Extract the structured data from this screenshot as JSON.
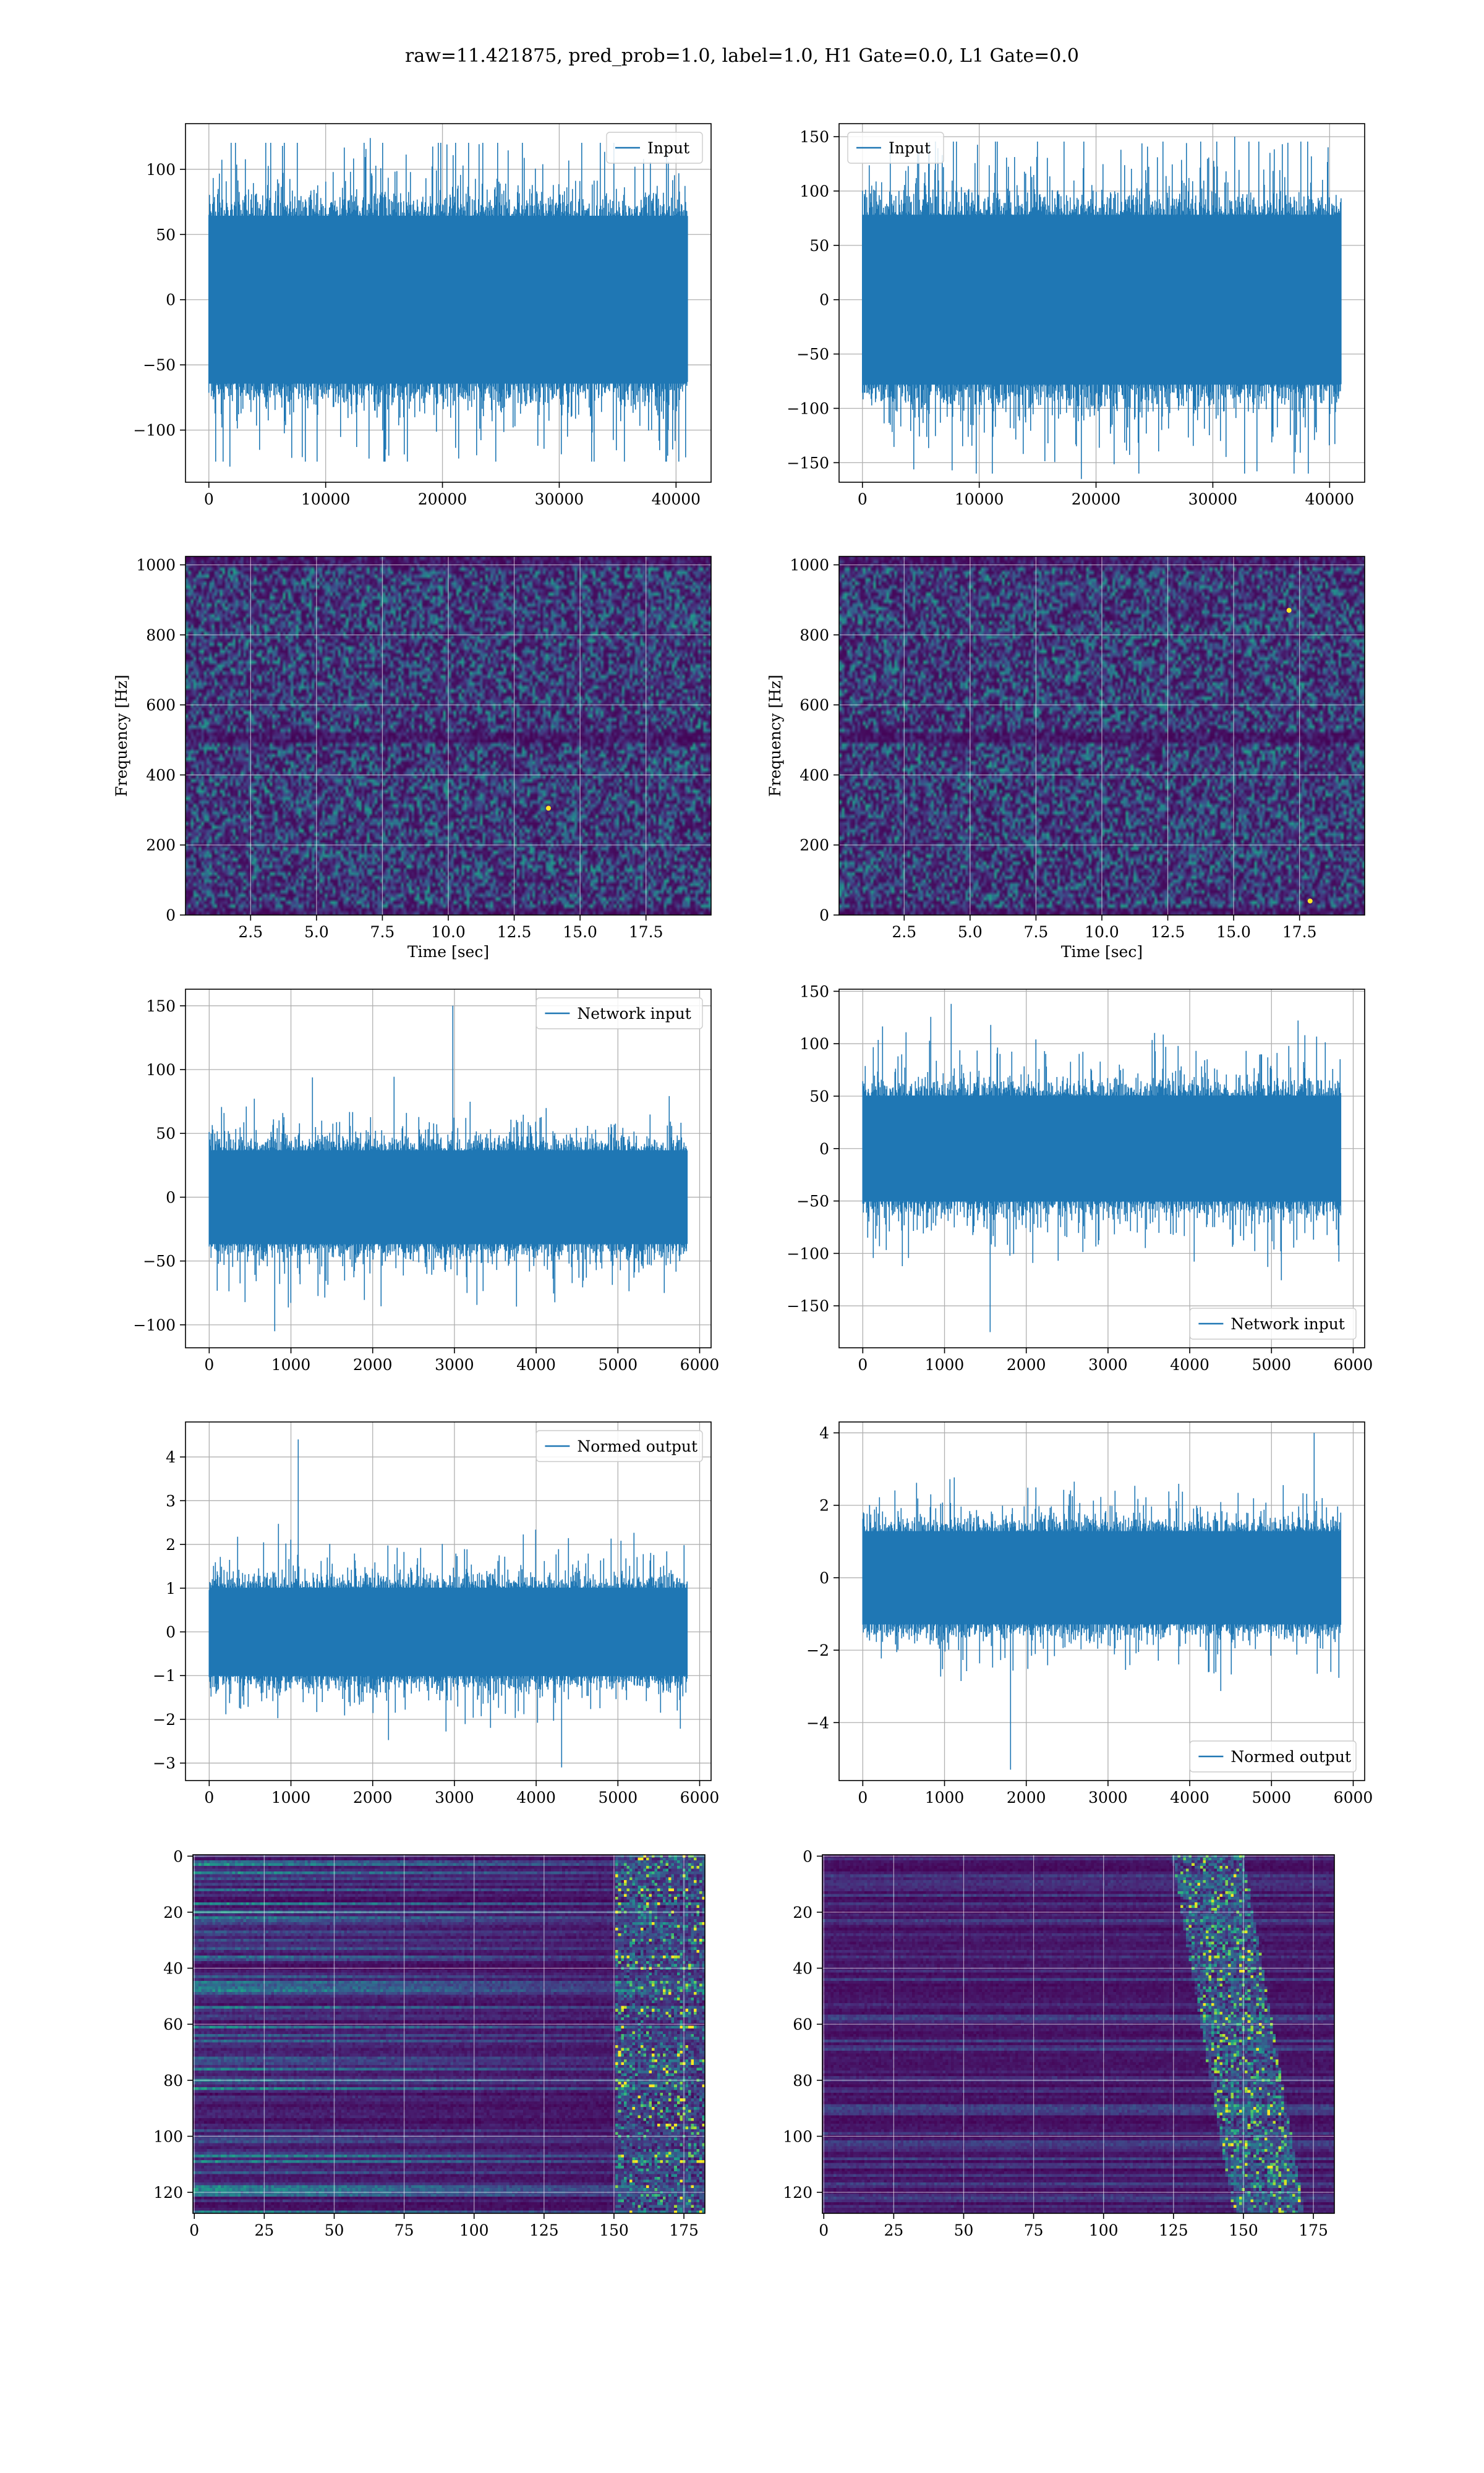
{
  "figure": {
    "title": "raw=11.421875, pred_prob=1.0, label=1.0, H1 Gate=0.0, L1 Gate=0.0"
  },
  "colors": {
    "line": "#1f77b4",
    "viridis_dark": "#440154",
    "viridis_mid": "#21918c",
    "viridis_bright": "#fde725"
  },
  "chart_data": [
    {
      "id": "input-h1",
      "type": "line",
      "title": "",
      "xlabel": "",
      "ylabel": "",
      "xlim": [
        -2000,
        43000
      ],
      "ylim": [
        -140,
        135
      ],
      "xticks": [
        0,
        10000,
        20000,
        30000,
        40000
      ],
      "yticks": [
        -100,
        -50,
        0,
        50,
        100
      ],
      "series": [
        {
          "name": "Input",
          "n_samples": 40960,
          "x_range": [
            0,
            40959
          ],
          "typical_range": [
            -70,
            70
          ],
          "extremes": [
            -128,
            124
          ]
        }
      ],
      "legend": "top-right",
      "grid": true
    },
    {
      "id": "input-l1",
      "type": "line",
      "title": "",
      "xlabel": "",
      "ylabel": "",
      "xlim": [
        -2000,
        43000
      ],
      "ylim": [
        -168,
        162
      ],
      "xticks": [
        0,
        10000,
        20000,
        30000,
        40000
      ],
      "yticks": [
        -150,
        -100,
        -50,
        0,
        50,
        100,
        150
      ],
      "series": [
        {
          "name": "Input",
          "n_samples": 40960,
          "x_range": [
            0,
            40959
          ],
          "typical_range": [
            -85,
            85
          ],
          "extremes": [
            -165,
            150
          ]
        }
      ],
      "legend": "top-left",
      "grid": true
    },
    {
      "id": "spectrogram-h1",
      "type": "heatmap",
      "title": "",
      "xlabel": "Time [sec]",
      "ylabel": "Frequency [Hz]",
      "xlim": [
        0.03,
        19.97
      ],
      "ylim": [
        0,
        1024
      ],
      "xticks": [
        2.5,
        5.0,
        7.5,
        10.0,
        12.5,
        15.0,
        17.5
      ],
      "yticks": [
        0,
        200,
        400,
        600,
        800,
        1000
      ],
      "colormap": "viridis",
      "grid": true,
      "bright_spots": [
        {
          "x": 13.8,
          "y": 305
        }
      ]
    },
    {
      "id": "spectrogram-l1",
      "type": "heatmap",
      "title": "",
      "xlabel": "Time [sec]",
      "ylabel": "Frequency [Hz]",
      "xlim": [
        0.03,
        19.97
      ],
      "ylim": [
        0,
        1024
      ],
      "xticks": [
        2.5,
        5.0,
        7.5,
        10.0,
        12.5,
        15.0,
        17.5
      ],
      "yticks": [
        0,
        200,
        400,
        600,
        800,
        1000
      ],
      "colormap": "viridis",
      "grid": true,
      "bright_spots": [
        {
          "x": 17.9,
          "y": 40
        },
        {
          "x": 17.1,
          "y": 870
        }
      ]
    },
    {
      "id": "network-input-h1",
      "type": "line",
      "title": "",
      "xlabel": "",
      "ylabel": "",
      "xlim": [
        -290,
        6140
      ],
      "ylim": [
        -118,
        163
      ],
      "xticks": [
        0,
        1000,
        2000,
        3000,
        4000,
        5000,
        6000
      ],
      "yticks": [
        -100,
        -50,
        0,
        50,
        100,
        150
      ],
      "series": [
        {
          "name": "Network input",
          "n_samples": 5850,
          "x_range": [
            0,
            5849
          ],
          "typical_range": [
            -40,
            40
          ],
          "extremes": [
            -105,
            150
          ]
        }
      ],
      "legend": "top-right",
      "grid": true
    },
    {
      "id": "network-input-l1",
      "type": "line",
      "title": "",
      "xlabel": "",
      "ylabel": "",
      "xlim": [
        -290,
        6140
      ],
      "ylim": [
        -190,
        152
      ],
      "xticks": [
        0,
        1000,
        2000,
        3000,
        4000,
        5000,
        6000
      ],
      "yticks": [
        -150,
        -100,
        -50,
        0,
        50,
        100,
        150
      ],
      "series": [
        {
          "name": "Network input",
          "n_samples": 5850,
          "x_range": [
            0,
            5849
          ],
          "typical_range": [
            -55,
            55
          ],
          "extremes": [
            -175,
            138
          ]
        }
      ],
      "legend": "bottom-right",
      "grid": true
    },
    {
      "id": "normed-output-h1",
      "type": "line",
      "title": "",
      "xlabel": "",
      "ylabel": "",
      "xlim": [
        -290,
        6140
      ],
      "ylim": [
        -3.4,
        4.8
      ],
      "xticks": [
        0,
        1000,
        2000,
        3000,
        4000,
        5000,
        6000
      ],
      "yticks": [
        -3,
        -2,
        -1,
        0,
        1,
        2,
        3,
        4
      ],
      "series": [
        {
          "name": "Normed output",
          "n_samples": 5850,
          "x_range": [
            0,
            5849
          ],
          "typical_range": [
            -1.1,
            1.1
          ],
          "extremes": [
            -3.1,
            4.4
          ]
        }
      ],
      "legend": "top-right",
      "grid": true
    },
    {
      "id": "normed-output-l1",
      "type": "line",
      "title": "",
      "xlabel": "",
      "ylabel": "",
      "xlim": [
        -290,
        6140
      ],
      "ylim": [
        -5.6,
        4.3
      ],
      "xticks": [
        0,
        1000,
        2000,
        3000,
        4000,
        5000,
        6000
      ],
      "yticks": [
        -4,
        -2,
        0,
        2,
        4
      ],
      "series": [
        {
          "name": "Normed output",
          "n_samples": 5850,
          "x_range": [
            0,
            5849
          ],
          "typical_range": [
            -1.4,
            1.4
          ],
          "extremes": [
            -5.3,
            4.0
          ]
        }
      ],
      "legend": "bottom-right",
      "grid": true
    },
    {
      "id": "feature-map-h1",
      "type": "heatmap",
      "title": "",
      "xlabel": "",
      "ylabel": "",
      "xlim": [
        -0.5,
        182.5
      ],
      "ylim": [
        127.5,
        -0.5
      ],
      "y_inverted": true,
      "xticks": [
        0,
        25,
        50,
        75,
        100,
        125,
        150,
        175
      ],
      "yticks": [
        0,
        20,
        40,
        60,
        80,
        100,
        120
      ],
      "rows": 128,
      "cols": 183,
      "colormap": "viridis",
      "grid": true,
      "activity": "horizontal banded rows, fading left to right; bright cluster near columns 150-183"
    },
    {
      "id": "feature-map-l1",
      "type": "heatmap",
      "title": "",
      "xlabel": "",
      "ylabel": "",
      "xlim": [
        -0.5,
        182.5
      ],
      "ylim": [
        127.5,
        -0.5
      ],
      "y_inverted": true,
      "xticks": [
        0,
        25,
        50,
        75,
        100,
        125,
        150,
        175
      ],
      "yticks": [
        0,
        20,
        40,
        60,
        80,
        100,
        120
      ],
      "rows": 128,
      "cols": 183,
      "colormap": "viridis",
      "grid": true,
      "activity": "mostly dark, faint rows; bright cluster near columns 140-165"
    }
  ]
}
